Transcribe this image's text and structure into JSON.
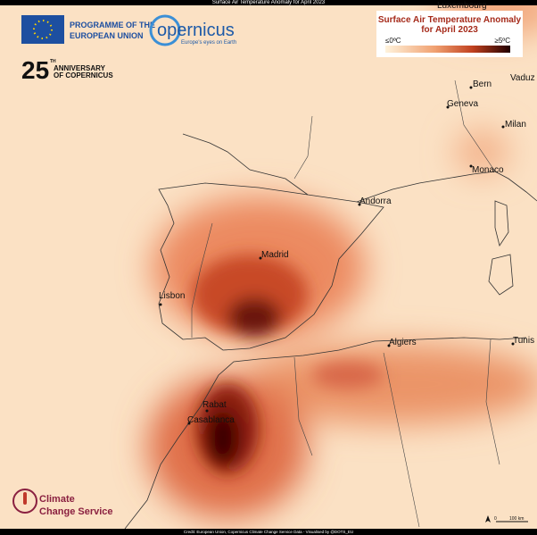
{
  "header": {
    "title": "Surface Air Temperature Anomaly for April 2023"
  },
  "logos": {
    "eu": [
      "PROGRAMME OF THE",
      "EUROPEAN UNION"
    ],
    "copernicus": {
      "name": "opernicus",
      "tagline": "Europe's eyes on Earth"
    },
    "anniversary": {
      "number": "25",
      "suffix": "TH",
      "lines": [
        "ANNIVERSARY",
        "OF COPERNICUS"
      ]
    },
    "climate": [
      "Climate",
      "Change Service"
    ]
  },
  "legend": {
    "title": [
      "Surface Air Temperature Anomaly",
      "for April 2023"
    ],
    "labels": [
      "≤0ºC",
      "≥5ºC"
    ]
  },
  "cities": [
    "Luxembourg",
    "Bern",
    "Vaduz",
    "Geneva",
    "Milan",
    "Monaco",
    "Andorra",
    "Madrid",
    "Lisbon",
    "Algiers",
    "Tunis",
    "Rabat",
    "Casablanca"
  ],
  "scale": {
    "start": "0",
    "end": "100 km"
  },
  "footer": {
    "credit": "Credit: European Union, Copernicus Climate Change Service Data - Visualised by @DOTS_EU"
  }
}
